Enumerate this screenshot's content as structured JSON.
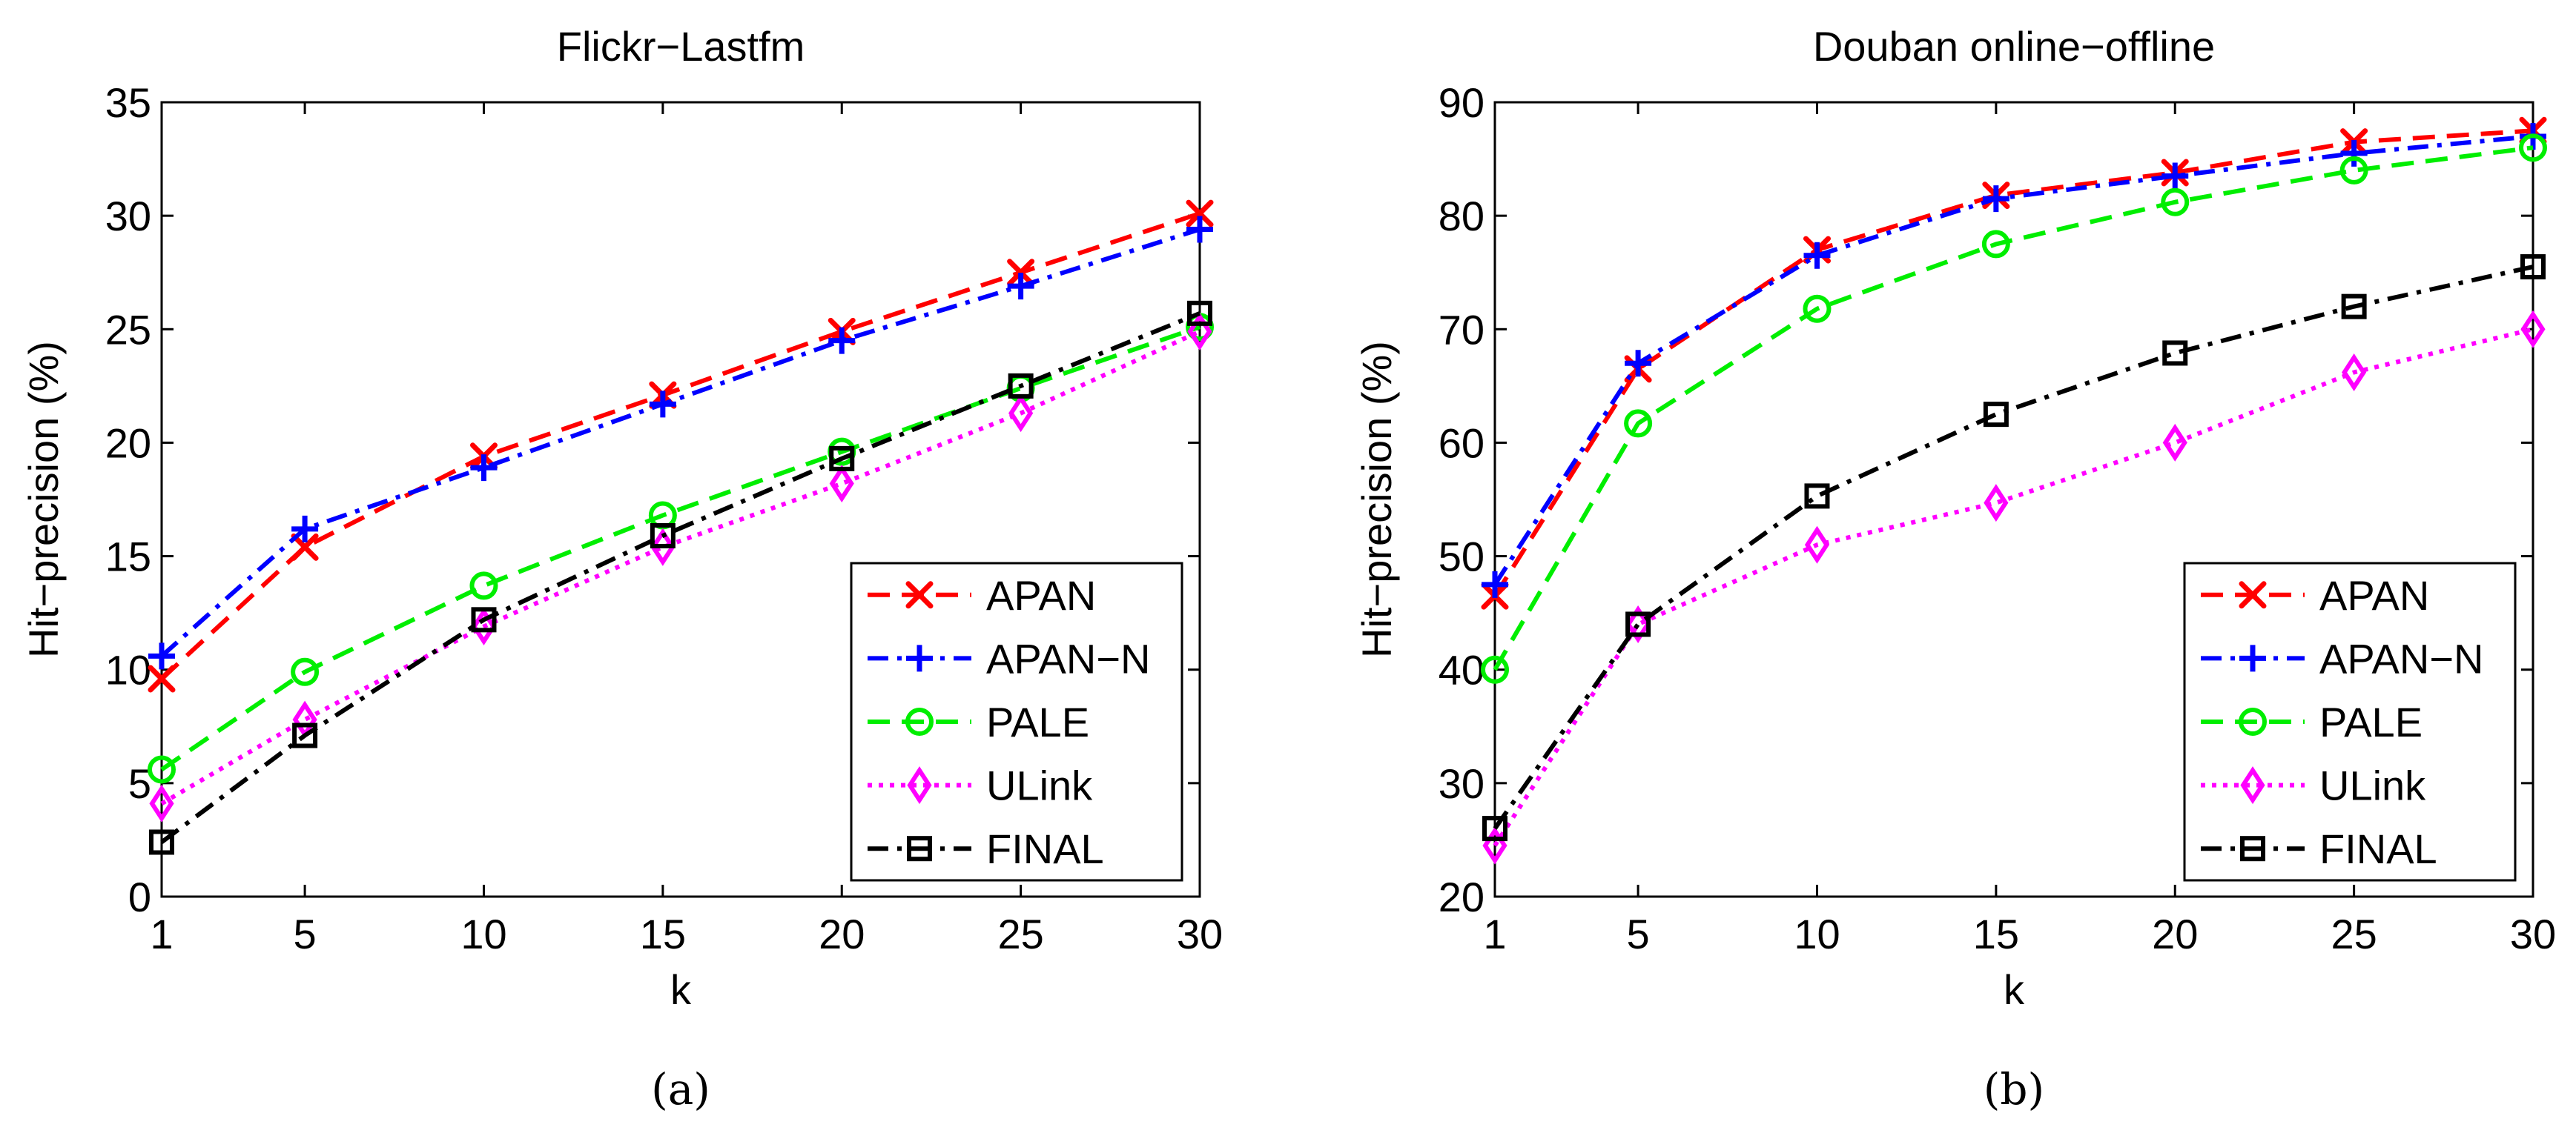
{
  "chart_data": [
    {
      "type": "line",
      "title": "Flickr−Lastfm",
      "caption": "(a)",
      "xlabel": "k",
      "ylabel": "Hit−precision (%)",
      "x": [
        1,
        5,
        10,
        15,
        20,
        25,
        30
      ],
      "xticks": [
        "1",
        "5",
        "10",
        "15",
        "20",
        "25",
        "30"
      ],
      "ylim": [
        0,
        35
      ],
      "yticks": [
        "0",
        "5",
        "10",
        "15",
        "20",
        "25",
        "30",
        "35"
      ],
      "legend_position": "bottom-right",
      "series": [
        {
          "name": "APAN",
          "color": "#ff0000",
          "dash": "dashed",
          "marker": "x",
          "values": [
            9.6,
            15.4,
            19.4,
            22.1,
            24.9,
            27.5,
            30.1
          ]
        },
        {
          "name": "APAN−N",
          "color": "#0000ff",
          "dash": "dashdot",
          "marker": "plus",
          "values": [
            10.6,
            16.2,
            18.9,
            21.7,
            24.5,
            26.9,
            29.4
          ]
        },
        {
          "name": "PALE",
          "color": "#00ee00",
          "dash": "dashed",
          "marker": "circle",
          "values": [
            5.6,
            9.9,
            13.7,
            16.8,
            19.6,
            22.4,
            25.1
          ]
        },
        {
          "name": "ULink",
          "color": "#ff00ff",
          "dash": "dotted",
          "marker": "diamond",
          "values": [
            4.1,
            7.8,
            11.9,
            15.4,
            18.2,
            21.3,
            24.9
          ]
        },
        {
          "name": "FINAL",
          "color": "#000000",
          "dash": "dashdot",
          "marker": "square",
          "values": [
            2.4,
            7.1,
            12.2,
            15.9,
            19.3,
            22.5,
            25.7
          ]
        }
      ]
    },
    {
      "type": "line",
      "title": "Douban online−offline",
      "caption": "(b)",
      "xlabel": "k",
      "ylabel": "Hit−precision (%)",
      "x": [
        1,
        5,
        10,
        15,
        20,
        25,
        30
      ],
      "xticks": [
        "1",
        "5",
        "10",
        "15",
        "20",
        "25",
        "30"
      ],
      "ylim": [
        20,
        90
      ],
      "yticks": [
        "20",
        "30",
        "40",
        "50",
        "60",
        "70",
        "80",
        "90"
      ],
      "legend_position": "bottom-right",
      "series": [
        {
          "name": "APAN",
          "color": "#ff0000",
          "dash": "dashed",
          "marker": "x",
          "values": [
            46.5,
            66.5,
            77.0,
            81.8,
            83.8,
            86.5,
            87.5
          ]
        },
        {
          "name": "APAN−N",
          "color": "#0000ff",
          "dash": "dashdot",
          "marker": "plus",
          "values": [
            47.5,
            67.0,
            76.5,
            81.5,
            83.5,
            85.5,
            87.0
          ]
        },
        {
          "name": "PALE",
          "color": "#00ee00",
          "dash": "dashed",
          "marker": "circle",
          "values": [
            40.0,
            61.7,
            71.8,
            77.5,
            81.2,
            84.0,
            86.0
          ]
        },
        {
          "name": "ULink",
          "color": "#ff00ff",
          "dash": "dotted",
          "marker": "diamond",
          "values": [
            24.5,
            44.0,
            51.0,
            54.7,
            60.0,
            66.2,
            70.0
          ]
        },
        {
          "name": "FINAL",
          "color": "#000000",
          "dash": "dashdot",
          "marker": "square",
          "values": [
            26.0,
            44.0,
            55.3,
            62.5,
            67.9,
            72.0,
            75.5
          ]
        }
      ]
    }
  ]
}
